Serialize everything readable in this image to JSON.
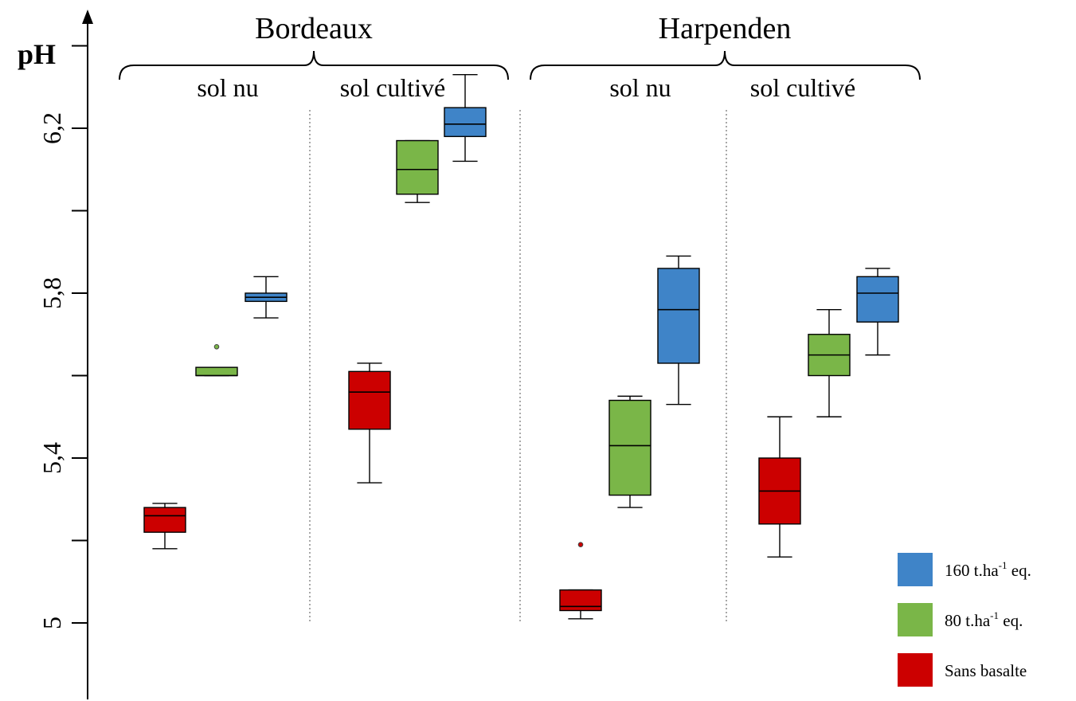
{
  "chart_data": {
    "type": "box",
    "ylabel": "pH",
    "yticks": [
      {
        "value": 5.0,
        "label": "5"
      },
      {
        "value": 5.2,
        "label": ""
      },
      {
        "value": 5.4,
        "label": "5,4"
      },
      {
        "value": 5.6,
        "label": ""
      },
      {
        "value": 5.8,
        "label": "5,8"
      },
      {
        "value": 6.0,
        "label": ""
      },
      {
        "value": 6.2,
        "label": "6,2"
      },
      {
        "value": 6.4,
        "label": ""
      }
    ],
    "sites": [
      {
        "name": "Bordeaux",
        "conditions": [
          "sol nu",
          "sol cultivé"
        ]
      },
      {
        "name": "Harpenden",
        "conditions": [
          "sol nu",
          "sol cultivé"
        ]
      }
    ],
    "series": [
      {
        "key": "sans",
        "name": "Sans basalte",
        "label_main": "Sans basalte",
        "label_sup": "",
        "label_tail": "",
        "color": "#cc0000"
      },
      {
        "key": "t80",
        "name": "80 t.ha-1 eq.",
        "label_main": "80 t.ha",
        "label_sup": "-1",
        "label_tail": " eq.",
        "color": "#7ab648"
      },
      {
        "key": "t160",
        "name": "160 t.ha-1 eq.",
        "label_main": "160 t.ha",
        "label_sup": "-1",
        "label_tail": " eq.",
        "color": "#3f84c8"
      }
    ],
    "legend_order": [
      "t160",
      "t80",
      "sans"
    ],
    "legend_position": "bottom-right",
    "boxes": [
      {
        "site": "Bordeaux",
        "condition": "sol nu",
        "series": "sans",
        "min": 5.18,
        "q1": 5.22,
        "median": 5.26,
        "q3": 5.28,
        "max": 5.29,
        "outliers": []
      },
      {
        "site": "Bordeaux",
        "condition": "sol nu",
        "series": "t80",
        "min": 5.6,
        "q1": 5.6,
        "median": 5.6,
        "q3": 5.62,
        "max": 5.62,
        "outliers": [
          5.67
        ]
      },
      {
        "site": "Bordeaux",
        "condition": "sol nu",
        "series": "t160",
        "min": 5.74,
        "q1": 5.78,
        "median": 5.79,
        "q3": 5.8,
        "max": 5.84,
        "outliers": []
      },
      {
        "site": "Bordeaux",
        "condition": "sol cultivé",
        "series": "sans",
        "min": 5.34,
        "q1": 5.47,
        "median": 5.56,
        "q3": 5.61,
        "max": 5.63,
        "outliers": []
      },
      {
        "site": "Bordeaux",
        "condition": "sol cultivé",
        "series": "t80",
        "min": 6.02,
        "q1": 6.04,
        "median": 6.1,
        "q3": 6.17,
        "max": 6.17,
        "outliers": []
      },
      {
        "site": "Bordeaux",
        "condition": "sol cultivé",
        "series": "t160",
        "min": 6.12,
        "q1": 6.18,
        "median": 6.21,
        "q3": 6.25,
        "max": 6.33,
        "outliers": []
      },
      {
        "site": "Harpenden",
        "condition": "sol nu",
        "series": "sans",
        "min": 5.01,
        "q1": 5.03,
        "median": 5.04,
        "q3": 5.08,
        "max": 5.08,
        "outliers": [
          5.19
        ]
      },
      {
        "site": "Harpenden",
        "condition": "sol nu",
        "series": "t80",
        "min": 5.28,
        "q1": 5.31,
        "median": 5.43,
        "q3": 5.54,
        "max": 5.55,
        "outliers": []
      },
      {
        "site": "Harpenden",
        "condition": "sol nu",
        "series": "t160",
        "min": 5.53,
        "q1": 5.63,
        "median": 5.76,
        "q3": 5.86,
        "max": 5.89,
        "outliers": []
      },
      {
        "site": "Harpenden",
        "condition": "sol cultivé",
        "series": "sans",
        "min": 5.16,
        "q1": 5.24,
        "median": 5.32,
        "q3": 5.4,
        "max": 5.5,
        "outliers": []
      },
      {
        "site": "Harpenden",
        "condition": "sol cultivé",
        "series": "t80",
        "min": 5.5,
        "q1": 5.6,
        "median": 5.65,
        "q3": 5.7,
        "max": 5.76,
        "outliers": []
      },
      {
        "site": "Harpenden",
        "condition": "sol cultivé",
        "series": "t160",
        "min": 5.65,
        "q1": 5.73,
        "median": 5.8,
        "q3": 5.84,
        "max": 5.86,
        "outliers": []
      }
    ]
  }
}
